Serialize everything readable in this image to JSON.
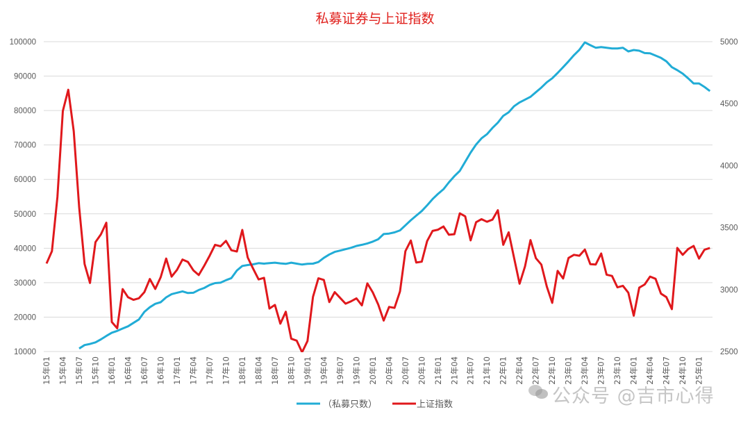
{
  "chart_data": {
    "type": "line",
    "title": "私募证券与上证指数",
    "colors": {
      "series0": "#21acd6",
      "series1": "#e0181c",
      "grid": "#d9d9d9",
      "axis_text": "#595959"
    },
    "y_left": {
      "min": 10000,
      "max": 100000,
      "step": 10000,
      "ticks": [
        "10000",
        "20000",
        "30000",
        "40000",
        "50000",
        "60000",
        "70000",
        "80000",
        "90000",
        "100000"
      ]
    },
    "y_right": {
      "min": 2500,
      "max": 5000,
      "step": 500,
      "ticks": [
        "2500",
        "3000",
        "3500",
        "4000",
        "4500",
        "5000"
      ]
    },
    "grid": "horizontal",
    "legend_position": "bottom",
    "tick_labels": [
      "15年01",
      "15年04",
      "15年07",
      "15年10",
      "16年01",
      "16年04",
      "16年07",
      "16年10",
      "17年01",
      "17年04",
      "17年07",
      "17年10",
      "18年01",
      "18年04",
      "18年07",
      "18年10",
      "19年01",
      "19年04",
      "19年07",
      "19年10",
      "20年01",
      "20年04",
      "20年07",
      "20年10",
      "21年01",
      "21年04",
      "21年07",
      "21年10",
      "22年01",
      "22年04",
      "22年07",
      "22年10",
      "23年01",
      "23年04",
      "23年07",
      "23年10",
      "24年01",
      "24年04",
      "24年07",
      "24年10",
      "25年01"
    ],
    "x": [
      "15年01",
      "15年02",
      "15年03",
      "15年04",
      "15年05",
      "15年06",
      "15年07",
      "15年08",
      "15年09",
      "15年10",
      "15年11",
      "15年12",
      "16年01",
      "16年02",
      "16年03",
      "16年04",
      "16年05",
      "16年06",
      "16年07",
      "16年08",
      "16年09",
      "16年10",
      "16年11",
      "16年12",
      "17年01",
      "17年02",
      "17年03",
      "17年04",
      "17年05",
      "17年06",
      "17年07",
      "17年08",
      "17年09",
      "17年10",
      "17年11",
      "17年12",
      "18年01",
      "18年02",
      "18年03",
      "18年04",
      "18年05",
      "18年06",
      "18年07",
      "18年08",
      "18年09",
      "18年10",
      "18年11",
      "18年12",
      "19年01",
      "19年02",
      "19年03",
      "19年04",
      "19年05",
      "19年06",
      "19年07",
      "19年08",
      "19年09",
      "19年10",
      "19年11",
      "19年12",
      "20年01",
      "20年02",
      "20年03",
      "20年04",
      "20年05",
      "20年06",
      "20年07",
      "20年08",
      "20年09",
      "20年10",
      "20年11",
      "20年12",
      "21年01",
      "21年02",
      "21年03",
      "21年04",
      "21年05",
      "21年06",
      "21年07",
      "21年08",
      "21年09",
      "21年10",
      "21年11",
      "21年12",
      "22年01",
      "22年02",
      "22年03",
      "22年04",
      "22年05",
      "22年06",
      "22年07",
      "22年08",
      "22年09",
      "22年10",
      "22年11",
      "22年12",
      "23年01",
      "23年02",
      "23年03",
      "23年04",
      "23年05",
      "23年06",
      "23年07",
      "23年08",
      "23年09",
      "23年10",
      "23年11",
      "23年12",
      "24年01",
      "24年02",
      "24年03",
      "24年04",
      "24年05",
      "24年06",
      "24年07",
      "24年08",
      "24年09",
      "24年10",
      "24年11",
      "24年12",
      "25年01",
      "25年02",
      "25年03"
    ],
    "series": [
      {
        "name": "（私募只数）",
        "axis": "left",
        "values": [
          null,
          null,
          null,
          null,
          null,
          null,
          10870,
          11870,
          12200,
          12670,
          13530,
          14530,
          15470,
          16000,
          16670,
          17330,
          18330,
          19330,
          21530,
          22870,
          23870,
          24330,
          25730,
          26670,
          27070,
          27470,
          27000,
          27070,
          27870,
          28470,
          29330,
          29870,
          30000,
          30730,
          31330,
          33530,
          34870,
          35130,
          35330,
          35670,
          35530,
          35670,
          35800,
          35600,
          35470,
          35800,
          35530,
          35270,
          35470,
          35530,
          36000,
          37200,
          38200,
          38930,
          39330,
          39730,
          40130,
          40670,
          41000,
          41400,
          41930,
          42600,
          44130,
          44270,
          44600,
          45200,
          46670,
          48130,
          49470,
          50800,
          52470,
          54270,
          55800,
          57130,
          59130,
          60930,
          62470,
          65130,
          67800,
          70130,
          71930,
          73130,
          74930,
          76470,
          78470,
          79500,
          81280,
          82360,
          83170,
          83980,
          85320,
          86670,
          88220,
          89360,
          90910,
          92590,
          94280,
          96090,
          97640,
          99800,
          98990,
          98250,
          98450,
          98250,
          98050,
          98050,
          98250,
          97170,
          97570,
          97370,
          96700,
          96630,
          95960,
          95290,
          94280,
          92590,
          91720,
          90710,
          89360,
          87880,
          87880,
          86870,
          85660
        ]
      },
      {
        "name": "上证指数",
        "axis": "right",
        "values": [
          3210,
          3310,
          3748,
          4441,
          4612,
          4277,
          3664,
          3206,
          3053,
          3383,
          3445,
          3539,
          2738,
          2688,
          3004,
          2938,
          2917,
          2930,
          2979,
          3085,
          3005,
          3100,
          3250,
          3104,
          3159,
          3242,
          3223,
          3155,
          3117,
          3192,
          3273,
          3361,
          3349,
          3393,
          3317,
          3307,
          3481,
          3259,
          3169,
          3082,
          3095,
          2847,
          2876,
          2725,
          2821,
          2603,
          2588,
          2494,
          2585,
          2941,
          3091,
          3078,
          2899,
          2979,
          2933,
          2886,
          2905,
          2929,
          2872,
          3050,
          2977,
          2880,
          2750,
          2860,
          2852,
          2985,
          3310,
          3396,
          3218,
          3225,
          3392,
          3473,
          3483,
          3509,
          3442,
          3447,
          3615,
          3591,
          3397,
          3544,
          3568,
          3547,
          3564,
          3640,
          3361,
          3462,
          3252,
          3047,
          3186,
          3399,
          3253,
          3202,
          3024,
          2893,
          3151,
          3089,
          3255,
          3280,
          3273,
          3323,
          3205,
          3202,
          3291,
          3120,
          3110,
          3018,
          3030,
          2975,
          2789,
          3015,
          3041,
          3105,
          3087,
          2967,
          2939,
          2842,
          3336,
          3280,
          3326,
          3352,
          3250,
          3321,
          3336
        ]
      }
    ]
  },
  "watermark": "公众号 @吉市心得"
}
